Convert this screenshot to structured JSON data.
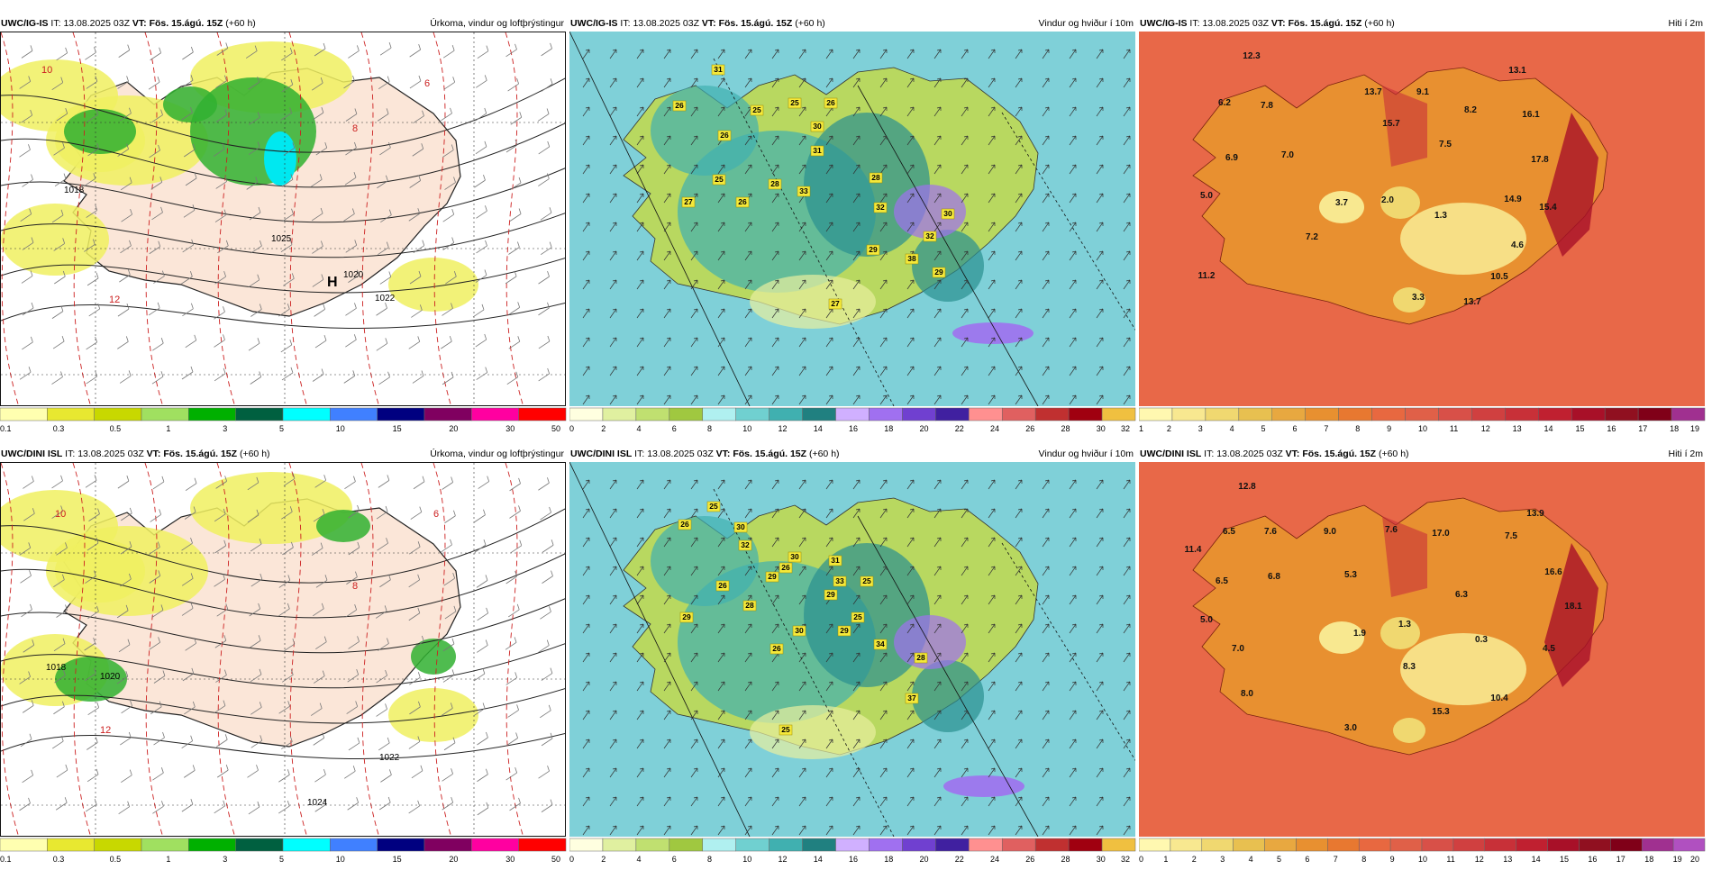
{
  "panels": [
    {
      "id": "p1",
      "model": "UWC/IG-IS",
      "it_label": "IT:",
      "it_value": "13.08.2025 03Z",
      "vt_label": "VT: Fös. 15.ágú. 15Z",
      "lead": "(+60 h)",
      "subtitle": "Úrkoma, vindur og loftþrýstingur",
      "type": "precip",
      "colorbar": {
        "colors": [
          "#ffffb0",
          "#e8e830",
          "#c8d800",
          "#a0e060",
          "#00b000",
          "#006040",
          "#00ffff",
          "#4080ff",
          "#000080",
          "#800060",
          "#ff00a0",
          "#ff0000"
        ],
        "ticks": [
          "0.1",
          "0.3",
          "0.5",
          "1",
          "3",
          "5",
          "10",
          "15",
          "20",
          "30",
          "50"
        ]
      },
      "labels": [
        {
          "t": "1018",
          "kind": "pres"
        },
        {
          "t": "1025",
          "kind": "pres"
        },
        {
          "t": "1020",
          "kind": "pres"
        },
        {
          "t": "1022",
          "kind": "pres"
        },
        {
          "t": "10",
          "kind": "temp"
        },
        {
          "t": "8",
          "kind": "temp"
        },
        {
          "t": "12",
          "kind": "temp"
        },
        {
          "t": "6",
          "kind": "temp"
        }
      ],
      "high_marker": "H"
    },
    {
      "id": "p2",
      "model": "UWC/IG-IS",
      "it_label": "IT:",
      "it_value": "13.08.2025 03Z",
      "vt_label": "VT: Fös. 15.ágú. 15Z",
      "lead": "(+60 h)",
      "subtitle": "Vindur og hviður í 10m",
      "type": "wind",
      "colorbar": {
        "colors": [
          "#ffffe0",
          "#e0f0a0",
          "#c0e070",
          "#a0c840",
          "#b0f0f0",
          "#70d0d0",
          "#40b0b0",
          "#208080",
          "#d0b0ff",
          "#a070f0",
          "#7040d0",
          "#4020a0",
          "#ff9090",
          "#e06060",
          "#c03030",
          "#a00010",
          "#f0c040"
        ],
        "ticks": [
          "0",
          "2",
          "4",
          "6",
          "8",
          "10",
          "12",
          "14",
          "16",
          "18",
          "20",
          "22",
          "24",
          "26",
          "28",
          "30",
          "32"
        ]
      },
      "gusts": [
        "31",
        "26",
        "25",
        "25",
        "26",
        "26",
        "30",
        "31",
        "25",
        "28",
        "27",
        "26",
        "33",
        "28",
        "32",
        "29",
        "30",
        "32",
        "38",
        "29",
        "27"
      ]
    },
    {
      "id": "p3",
      "model": "UWC/IG-IS",
      "it_label": "IT:",
      "it_value": "13.08.2025 03Z",
      "vt_label": "VT: Fös. 15.ágú. 15Z",
      "lead": "(+60 h)",
      "subtitle": "Hiti í 2m",
      "type": "temp",
      "colorbar": {
        "colors": [
          "#fff8b0",
          "#f8e890",
          "#f0d870",
          "#e8c050",
          "#e8a840",
          "#e89030",
          "#e87830",
          "#e86840",
          "#e06048",
          "#d85048",
          "#d04040",
          "#c83038",
          "#c02030",
          "#a81028",
          "#901020",
          "#800018",
          "#a03090"
        ],
        "ticks": [
          "1",
          "2",
          "3",
          "4",
          "5",
          "6",
          "7",
          "8",
          "9",
          "10",
          "11",
          "12",
          "13",
          "14",
          "15",
          "16",
          "17",
          "18",
          "19"
        ]
      },
      "temps": [
        "12.3",
        "6.2",
        "7.8",
        "13.7",
        "9.1",
        "13.1",
        "8.2",
        "16.1",
        "15.7",
        "7.5",
        "6.9",
        "7.0",
        "17.8",
        "5.0",
        "3.7",
        "2.0",
        "1.3",
        "14.9",
        "15.4",
        "7.2",
        "4.6",
        "11.2",
        "10.5",
        "3.3",
        "13.7"
      ]
    },
    {
      "id": "p4",
      "model": "UWC/DINI ISL",
      "it_label": "IT:",
      "it_value": "13.08.2025 03Z",
      "vt_label": "VT: Fös. 15.ágú. 15Z",
      "lead": "(+60 h)",
      "subtitle": "Úrkoma, vindur og loftþrýstingur",
      "type": "precip",
      "colorbar": {
        "colors": [
          "#ffffb0",
          "#e8e830",
          "#c8d800",
          "#a0e060",
          "#00b000",
          "#006040",
          "#00ffff",
          "#4080ff",
          "#000080",
          "#800060",
          "#ff00a0",
          "#ff0000"
        ],
        "ticks": [
          "0.1",
          "0.3",
          "0.5",
          "1",
          "3",
          "5",
          "10",
          "15",
          "20",
          "30",
          "50"
        ]
      },
      "labels": [
        {
          "t": "1018",
          "kind": "pres"
        },
        {
          "t": "1020",
          "kind": "pres"
        },
        {
          "t": "1022",
          "kind": "pres"
        },
        {
          "t": "1024",
          "kind": "pres"
        },
        {
          "t": "10",
          "kind": "temp"
        },
        {
          "t": "8",
          "kind": "temp"
        },
        {
          "t": "12",
          "kind": "temp"
        },
        {
          "t": "6",
          "kind": "temp"
        }
      ],
      "high_marker": ""
    },
    {
      "id": "p5",
      "model": "UWC/DINI ISL",
      "it_label": "IT:",
      "it_value": "13.08.2025 03Z",
      "vt_label": "VT: Fös. 15.ágú. 15Z",
      "lead": "(+60 h)",
      "subtitle": "Vindur og hviður í 10m",
      "type": "wind",
      "colorbar": {
        "colors": [
          "#ffffe0",
          "#e0f0a0",
          "#c0e070",
          "#a0c840",
          "#b0f0f0",
          "#70d0d0",
          "#40b0b0",
          "#208080",
          "#d0b0ff",
          "#a070f0",
          "#7040d0",
          "#4020a0",
          "#ff9090",
          "#e06060",
          "#c03030",
          "#a00010",
          "#f0c040"
        ],
        "ticks": [
          "0",
          "2",
          "4",
          "6",
          "8",
          "10",
          "12",
          "14",
          "16",
          "18",
          "20",
          "22",
          "24",
          "26",
          "28",
          "30",
          "32"
        ]
      },
      "gusts": [
        "25",
        "26",
        "30",
        "32",
        "29",
        "26",
        "26",
        "30",
        "31",
        "29",
        "28",
        "29",
        "30",
        "33",
        "25",
        "26",
        "29",
        "25",
        "34",
        "28",
        "37",
        "25"
      ]
    },
    {
      "id": "p6",
      "model": "UWC/DINI ISL",
      "it_label": "IT:",
      "it_value": "13.08.2025 03Z",
      "vt_label": "VT: Fös. 15.ágú. 15Z",
      "lead": "(+60 h)",
      "subtitle": "Hiti í 2m",
      "type": "temp",
      "colorbar": {
        "colors": [
          "#fff8b0",
          "#f8e890",
          "#f0d870",
          "#e8c050",
          "#e8a840",
          "#e89030",
          "#e87830",
          "#e86840",
          "#e06048",
          "#d85048",
          "#d04040",
          "#c83038",
          "#c02030",
          "#a81028",
          "#901020",
          "#800018",
          "#a03090",
          "#b050c0"
        ],
        "ticks": [
          "0",
          "1",
          "2",
          "3",
          "4",
          "5",
          "6",
          "7",
          "8",
          "9",
          "10",
          "11",
          "12",
          "13",
          "14",
          "15",
          "16",
          "17",
          "18",
          "19",
          "20"
        ]
      },
      "temps": [
        "12.8",
        "11.4",
        "6.5",
        "7.6",
        "9.0",
        "7.6",
        "17.0",
        "13.9",
        "7.5",
        "6.5",
        "6.8",
        "5.3",
        "16.6",
        "5.0",
        "1.9",
        "1.3",
        "6.3",
        "18.1",
        "7.0",
        "0.3",
        "4.5",
        "8.3",
        "8.0",
        "15.3",
        "10.4",
        "3.0"
      ]
    }
  ]
}
